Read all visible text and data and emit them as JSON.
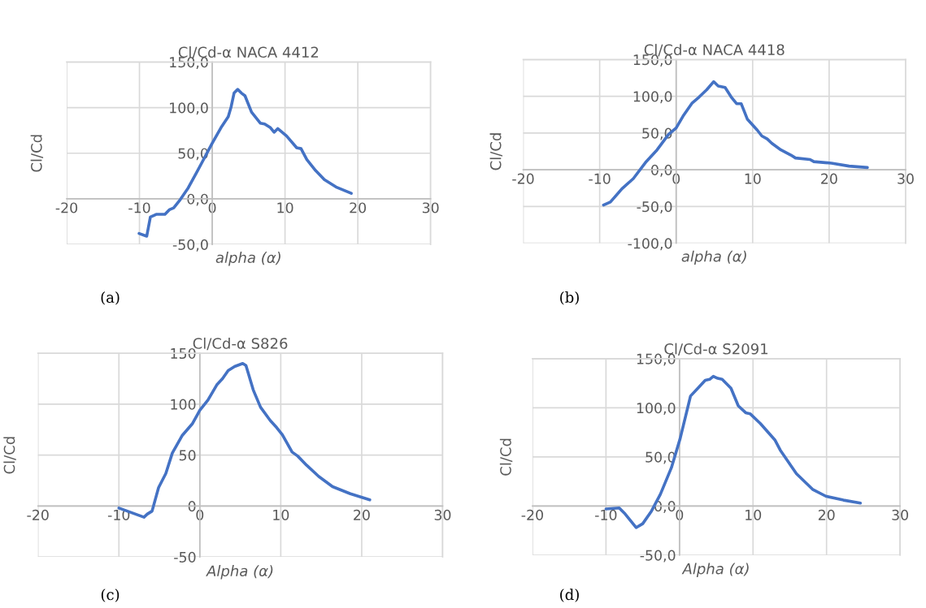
{
  "chart_data": [
    {
      "type": "line",
      "title": "Cl/Cd-α NACA 4412",
      "xlabel": "alpha (α)",
      "ylabel": "Cl/Cd",
      "annotations": [
        "(a)"
      ],
      "grid": true,
      "marker": "none",
      "line_style": "solid",
      "xlim": [
        -20,
        30
      ],
      "xticks": [
        -20,
        -10,
        0,
        10,
        20,
        30
      ],
      "ylim": [
        -50,
        150
      ],
      "yticks": [
        {
          "value": -50,
          "label": "-50,0"
        },
        {
          "value": 0,
          "label": "0,0"
        },
        {
          "value": 50,
          "label": "50,0"
        },
        {
          "value": 100,
          "label": "100,0"
        },
        {
          "value": 150,
          "label": "150,0"
        }
      ],
      "series": [
        {
          "color": "#4472c4",
          "x": [
            -10.05,
            -9,
            -8.5,
            -7.7,
            -6.5,
            -5.9,
            -5.3,
            -4.5,
            -3.3,
            -2.2,
            -1.4,
            0,
            1.2,
            2.2,
            2.6,
            3,
            3.5,
            4,
            4.5,
            5.4,
            6.6,
            7.2,
            8,
            8.5,
            9,
            10.2,
            11.6,
            12.2,
            13,
            14.2,
            15.4,
            17,
            19.1
          ],
          "values": [
            -38,
            -41,
            -20,
            -17,
            -17,
            -12,
            -10,
            -2,
            12,
            28,
            40,
            61,
            78,
            90,
            101,
            116,
            120,
            116,
            113,
            95,
            83,
            82,
            78,
            73,
            77,
            69,
            56,
            55,
            43,
            31,
            21,
            13,
            6
          ]
        }
      ]
    },
    {
      "type": "line",
      "title": "Cl/Cd-α NACA 4418",
      "xlabel": "alpha (α)",
      "ylabel": "Cl/Cd",
      "annotations": [
        "(b)"
      ],
      "grid": true,
      "marker": "none",
      "line_style": "solid",
      "xlim": [
        -20,
        30
      ],
      "xticks": [
        -20,
        -10,
        0,
        10,
        20,
        30
      ],
      "ylim": [
        -100,
        150
      ],
      "yticks": [
        {
          "value": -100,
          "label": "-100,0"
        },
        {
          "value": -50,
          "label": "-50,0"
        },
        {
          "value": 0,
          "label": "0,0"
        },
        {
          "value": 50,
          "label": "50,0"
        },
        {
          "value": 100,
          "label": "100,0"
        },
        {
          "value": 150,
          "label": "150,0"
        }
      ],
      "series": [
        {
          "color": "#4472c4",
          "x": [
            -9.5,
            -8.6,
            -7.1,
            -5.6,
            -4,
            -2.5,
            -1,
            0,
            0.9,
            2.1,
            3,
            4,
            4.9,
            5.5,
            6.4,
            7.2,
            7.9,
            8.5,
            9.3,
            10.6,
            11.2,
            11.9,
            12.5,
            13.7,
            15,
            15.6,
            17.5,
            18,
            20.3,
            22.6,
            25
          ],
          "values": [
            -48,
            -44,
            -26,
            -12,
            10,
            27,
            48,
            57,
            73,
            91,
            99,
            109,
            120,
            114,
            112,
            99,
            90,
            90,
            69,
            54,
            46,
            42,
            36,
            27,
            20,
            16,
            14,
            11,
            9,
            5,
            3
          ]
        }
      ]
    },
    {
      "type": "line",
      "title": "Cl/Cd-α S826",
      "xlabel": "Alpha (α)",
      "ylabel": "Cl/Cd",
      "annotations": [
        "(c)"
      ],
      "grid": true,
      "marker": "none",
      "line_style": "solid",
      "xlim": [
        -20,
        30
      ],
      "xticks": [
        -20,
        -10,
        0,
        10,
        20,
        30
      ],
      "ylim": [
        -50,
        150
      ],
      "yticks": [
        -50,
        0,
        50,
        100,
        150
      ],
      "series": [
        {
          "color": "#4472c4",
          "x": [
            -10,
            -6.9,
            -6.5,
            -5.9,
            -5.1,
            -4.2,
            -3.4,
            -2.2,
            -0.9,
            0,
            1,
            2.1,
            2.8,
            3.5,
            4.3,
            5.3,
            5.7,
            6.6,
            7.5,
            8.7,
            9.5,
            10.2,
            11.4,
            12.1,
            13.2,
            14.7,
            16.4,
            18.6,
            21
          ],
          "values": [
            -2,
            -11,
            -8,
            -5,
            18,
            32,
            52,
            69,
            81,
            94,
            104,
            119,
            125,
            133,
            137,
            140,
            138,
            114,
            97,
            84,
            77,
            70,
            53,
            49,
            40,
            29,
            19,
            12,
            6
          ]
        }
      ]
    },
    {
      "type": "line",
      "title": "Cl/Cd-α S2091",
      "xlabel": "Alpha (α)",
      "ylabel": "Cl/Cd",
      "annotations": [
        "(d)"
      ],
      "grid": true,
      "marker": "none",
      "line_style": "solid",
      "xlim": [
        -20,
        30
      ],
      "xticks": [
        -20,
        -10,
        0,
        10,
        20,
        30
      ],
      "ylim": [
        -50,
        150
      ],
      "yticks": [
        {
          "value": -50,
          "label": "-50,0"
        },
        {
          "value": 0,
          "label": "0,0"
        },
        {
          "value": 50,
          "label": "50,0"
        },
        {
          "value": 100,
          "label": "100,0"
        },
        {
          "value": 150,
          "label": "150,0"
        }
      ],
      "series": [
        {
          "color": "#4472c4",
          "x": [
            -10,
            -8.2,
            -7.4,
            -5.9,
            -5,
            -3.8,
            -2.6,
            -1.1,
            0.1,
            1.5,
            2.5,
            3.5,
            4.1,
            4.6,
            5.2,
            5.8,
            7,
            8,
            9,
            9.6,
            11,
            13,
            13.7,
            15.9,
            18.1,
            19.9,
            22.3,
            24.6
          ],
          "values": [
            -3,
            -2,
            -8,
            -22,
            -18,
            -5,
            12,
            39,
            69,
            112,
            120,
            128,
            129,
            132,
            130,
            129,
            120,
            102,
            95,
            94,
            84,
            67,
            57,
            33,
            17,
            10,
            6,
            3
          ]
        }
      ]
    }
  ]
}
